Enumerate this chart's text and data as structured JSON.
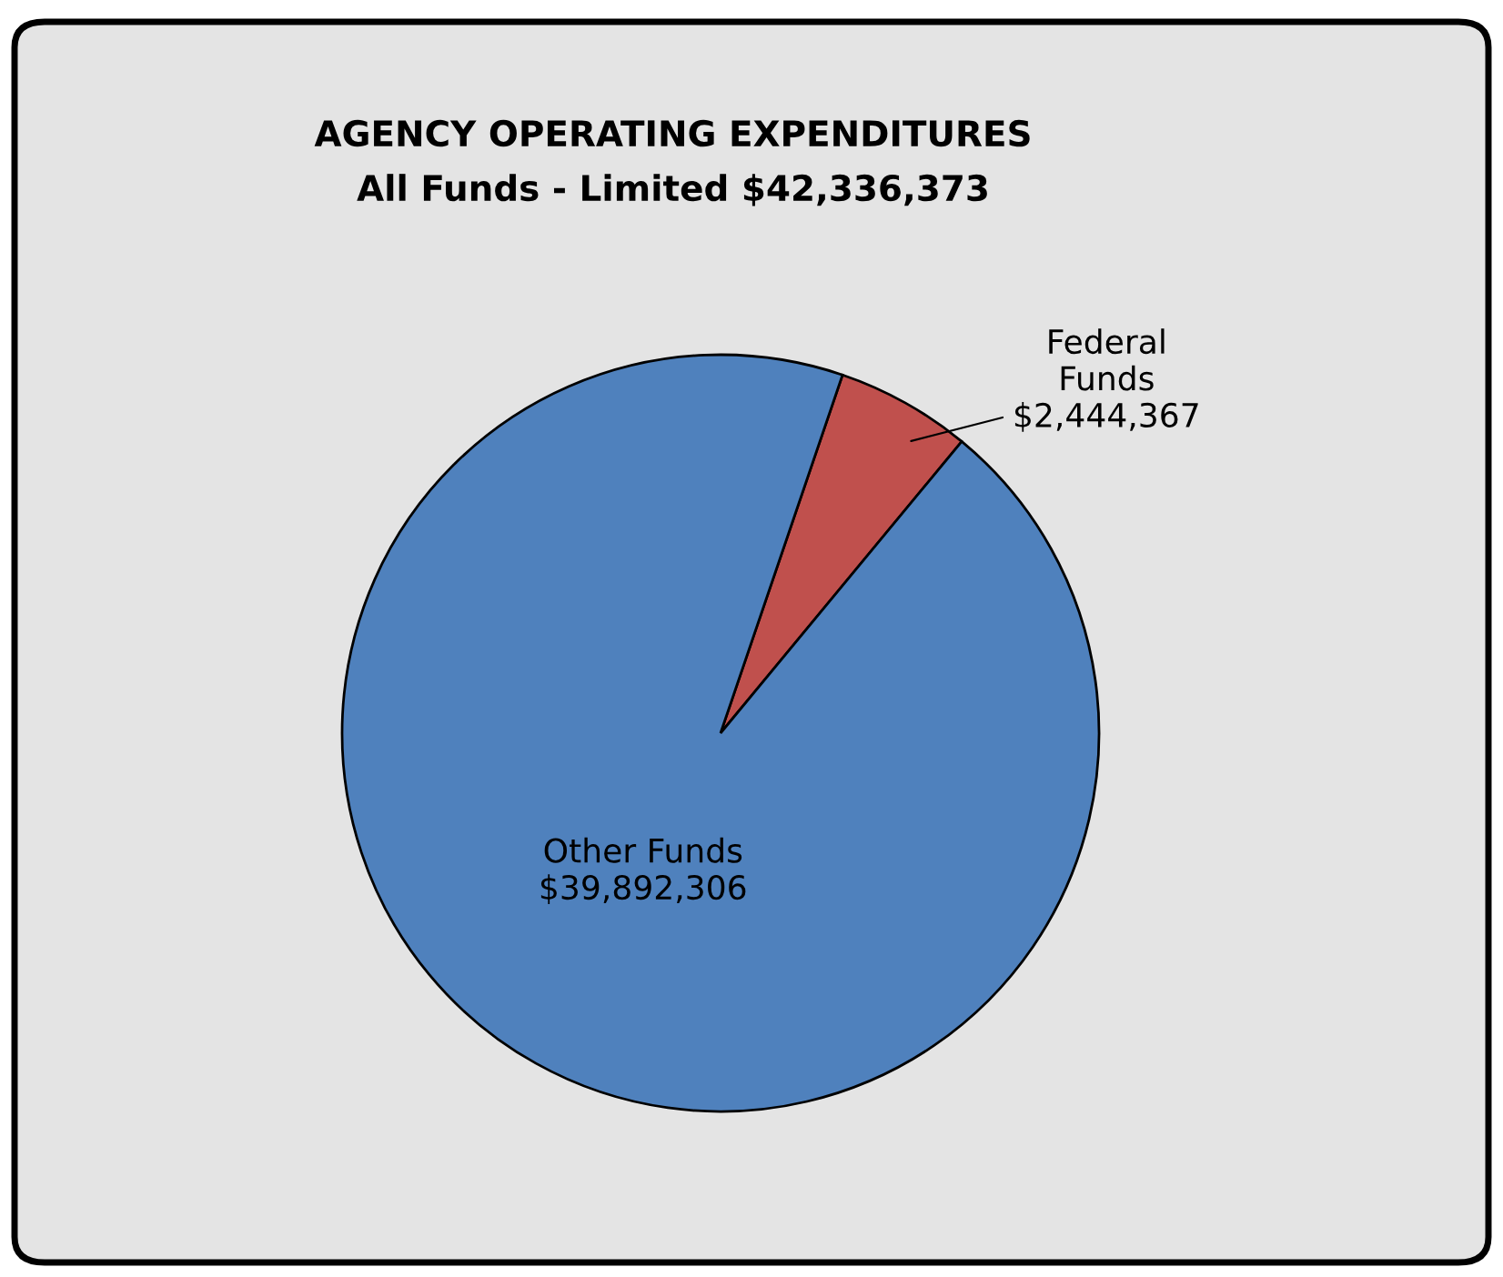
{
  "chart_data": {
    "type": "pie",
    "title": "AGENCY OPERATING EXPENDITURES",
    "subtitle": "All Funds - Limited $42,336,373",
    "categories": [
      "Federal Funds",
      "Other Funds"
    ],
    "values": [
      2444367,
      39892306
    ],
    "value_labels": [
      "$2,444,367",
      "$39,892,306"
    ],
    "colors": [
      "#c0504d",
      "#4f81bd"
    ],
    "legend": false
  }
}
